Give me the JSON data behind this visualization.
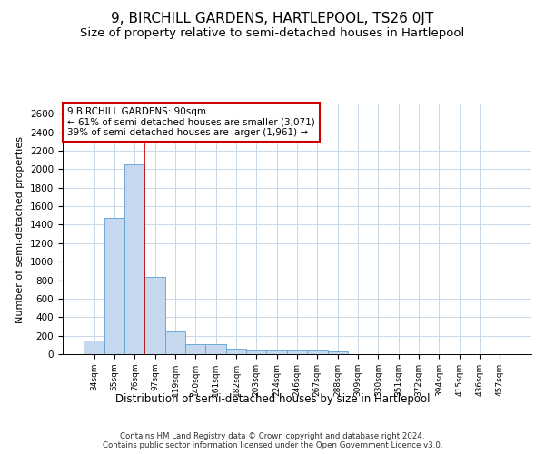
{
  "title": "9, BIRCHILL GARDENS, HARTLEPOOL, TS26 0JT",
  "subtitle": "Size of property relative to semi-detached houses in Hartlepool",
  "xlabel": "Distribution of semi-detached houses by size in Hartlepool",
  "ylabel": "Number of semi-detached properties",
  "footer_line1": "Contains HM Land Registry data © Crown copyright and database right 2024.",
  "footer_line2": "Contains public sector information licensed under the Open Government Licence v3.0.",
  "categories": [
    "34sqm",
    "55sqm",
    "76sqm",
    "97sqm",
    "119sqm",
    "140sqm",
    "161sqm",
    "182sqm",
    "203sqm",
    "224sqm",
    "246sqm",
    "267sqm",
    "288sqm",
    "309sqm",
    "330sqm",
    "351sqm",
    "372sqm",
    "394sqm",
    "415sqm",
    "436sqm",
    "457sqm"
  ],
  "values": [
    150,
    1470,
    2050,
    830,
    250,
    110,
    110,
    60,
    35,
    35,
    35,
    35,
    30,
    0,
    0,
    0,
    0,
    0,
    0,
    0,
    0
  ],
  "bar_color": "#c5d8ed",
  "bar_edge_color": "#5a9fd4",
  "ylim": [
    0,
    2700
  ],
  "yticks": [
    0,
    200,
    400,
    600,
    800,
    1000,
    1200,
    1400,
    1600,
    1800,
    2000,
    2200,
    2400,
    2600
  ],
  "property_line_x": 2.5,
  "annotation_text": "9 BIRCHILL GARDENS: 90sqm\n← 61% of semi-detached houses are smaller (3,071)\n39% of semi-detached houses are larger (1,961) →",
  "annotation_box_color": "#cc0000",
  "title_fontsize": 11,
  "subtitle_fontsize": 9.5,
  "background_color": "#ffffff",
  "grid_color": "#c8d8e8"
}
